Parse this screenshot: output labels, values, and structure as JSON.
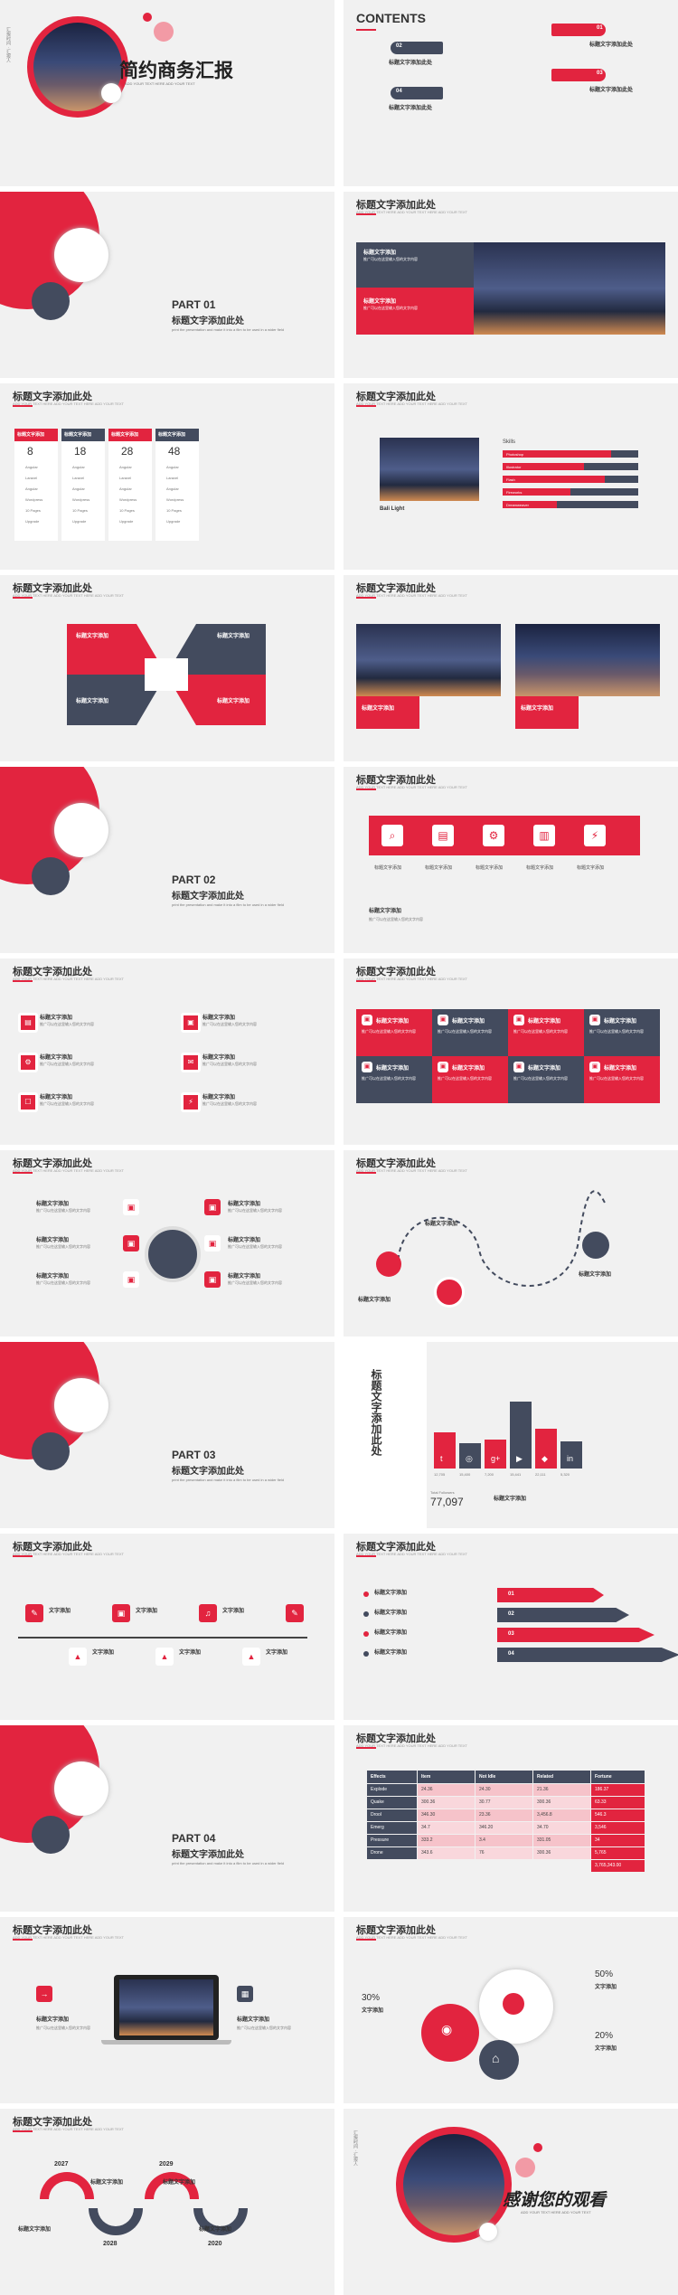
{
  "cover": {
    "title": "简约商务汇报",
    "subtitle": "ADD YOUR TEXT HERE  ADD YOUR TEXT",
    "side_text": "汇报时间 · 汇报人"
  },
  "contents": {
    "title": "CONTENTS",
    "items": [
      {
        "num": "01",
        "label": "标题文字添加此处"
      },
      {
        "num": "02",
        "label": "标题文字添加此处"
      },
      {
        "num": "03",
        "label": "标题文字添加此处"
      },
      {
        "num": "04",
        "label": "标题文字添加此处"
      }
    ]
  },
  "slide_title": "标题文字添加此处",
  "slide_sub": "ADD YOUR TEXT HERE  ADD YOUR TEXT HERE ADD YOUR TEXT",
  "item_title": "标题文字添加",
  "body_text": "推广可以在这里输入您的文字内容",
  "parts": [
    {
      "label": "PART 01",
      "title": "标题文字添加此处",
      "desc": "print the presentation and make it into a film to be used in a wider field"
    },
    {
      "label": "PART 02",
      "title": "标题文字添加此处",
      "desc": "print the presentation and make it into a film to be used in a wider field"
    },
    {
      "label": "PART 03",
      "title": "标题文字添加此处",
      "desc": "print the presentation and make it into a film to be used in a wider field"
    },
    {
      "label": "PART 04",
      "title": "标题文字添加此处",
      "desc": "print the presentation and make it into a film to be used in a wider field"
    }
  ],
  "pricing": {
    "header": "标题文字添加",
    "prices": [
      "8",
      "18",
      "28",
      "48"
    ],
    "rows": [
      "Angular",
      "Laravel",
      "Angular",
      "Wordpress",
      "10 Pages",
      "Upgrade"
    ]
  },
  "skills": {
    "label": "Skills",
    "caption": "Bali Light",
    "bars": [
      {
        "name": "Photoshop",
        "value": 0.8
      },
      {
        "name": "Illustrator",
        "value": 0.6
      },
      {
        "name": "Flash",
        "value": 0.75
      },
      {
        "name": "Fireworks",
        "value": 0.5
      },
      {
        "name": "Dreamweaver",
        "value": 0.4
      }
    ]
  },
  "stats": {
    "values": [
      "12,705",
      "15,400",
      "7,200",
      "15,441",
      "22,111",
      "5,320"
    ],
    "total_label": "Total Followers",
    "total": "77,097",
    "vertical_title": "标题文字添加此处"
  },
  "short_label": "文字添加",
  "table": {
    "headers": [
      "Effects",
      "Item",
      "Not Idle",
      "Related",
      "Fortune"
    ],
    "rows": [
      [
        "Explode",
        "24.36",
        "24.30",
        "21.36",
        "186.37"
      ],
      [
        "Quake",
        "300.36",
        "30.77",
        "300.36",
        "63.33"
      ],
      [
        "Drool",
        "346.30",
        "23.36",
        "3,456.8",
        "546.3"
      ],
      [
        "Emerg",
        "34.7",
        "346.20",
        "34.70",
        "3,546"
      ],
      [
        "Pressure",
        "333.2",
        "3.4",
        "331.05",
        "34"
      ],
      [
        "Drone",
        "343.6",
        "76",
        "300.36",
        "5,765"
      ]
    ],
    "total": "3,765,343.00"
  },
  "percents": {
    "p50": "50%",
    "p30": "30%",
    "p20": "20%"
  },
  "timeline_years": [
    "2027",
    "2028",
    "2029",
    "2020"
  ],
  "thanks": {
    "title": "感谢您的观看",
    "subtitle": "ADD YOUR TEXT HERE  ADD YOUR TEXT"
  }
}
